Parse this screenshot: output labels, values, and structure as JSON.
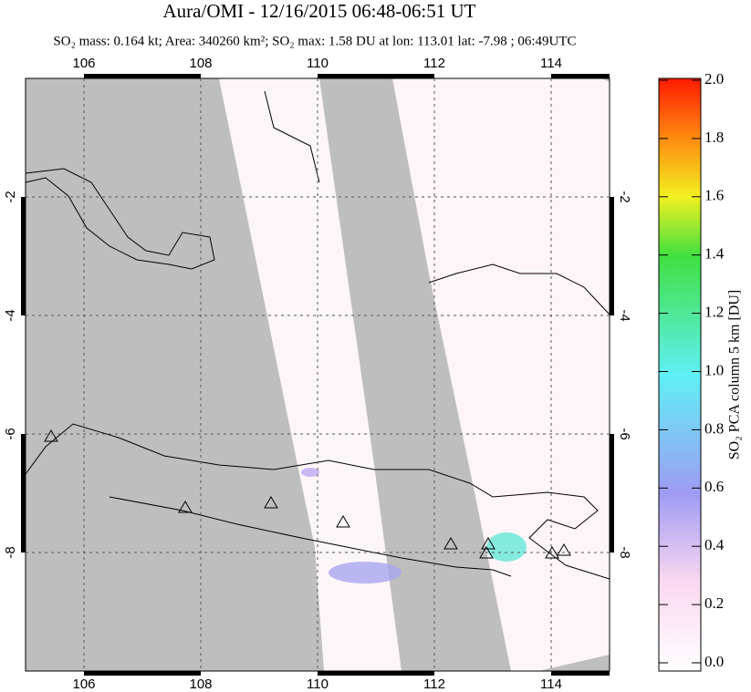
{
  "title": "Aura/OMI - 12/16/2015 06:48-06:51 UT",
  "subtitle": "SO₂ mass: 0.164 kt; Area: 340260 km²; SO₂ max: 1.58 DU at lon: 113.01 lat: -7.98 ; 06:49UTC",
  "map": {
    "xlim": [
      105,
      115
    ],
    "ylim": [
      -10,
      0
    ],
    "xticks": [
      106,
      108,
      110,
      112,
      114
    ],
    "yticks": [
      -2,
      -4,
      -6,
      -8
    ],
    "grid": true
  },
  "colorbar": {
    "label": "SO₂ PCA column 5 km [DU]",
    "lim": [
      0,
      2
    ],
    "ticks": [
      {
        "value": 0,
        "label": "0.0"
      },
      {
        "value": 0.2,
        "label": "0.2"
      },
      {
        "value": 0.4,
        "label": "0.4"
      },
      {
        "value": 0.6,
        "label": "0.6"
      },
      {
        "value": 0.8,
        "label": "0.8"
      },
      {
        "value": 1,
        "label": "1.0"
      },
      {
        "value": 1.2,
        "label": "1.2"
      },
      {
        "value": 1.4,
        "label": "1.4"
      },
      {
        "value": 1.6,
        "label": "1.6"
      },
      {
        "value": 1.8,
        "label": "1.8"
      },
      {
        "value": 2,
        "label": "2.0"
      }
    ]
  }
}
